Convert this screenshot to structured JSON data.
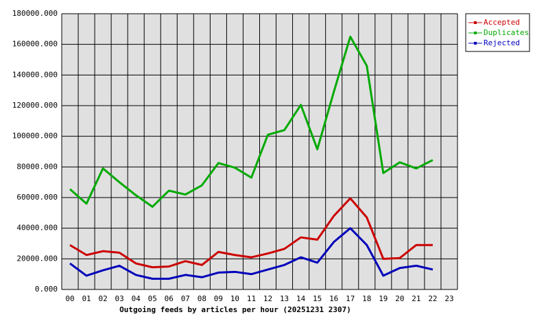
{
  "chart_data": {
    "type": "line",
    "title": "Outgoing feeds by articles per hour (20251231 2307)",
    "categories": [
      "00",
      "01",
      "02",
      "03",
      "04",
      "05",
      "06",
      "07",
      "08",
      "09",
      "10",
      "11",
      "12",
      "13",
      "14",
      "15",
      "16",
      "17",
      "18",
      "19",
      "20",
      "21",
      "22",
      "23"
    ],
    "series": [
      {
        "name": "Accepted",
        "color": "#cc0000",
        "values": [
          29000,
          22500,
          25000,
          24000,
          17000,
          14500,
          15000,
          18500,
          16000,
          24500,
          22500,
          21000,
          23500,
          26500,
          34000,
          32500,
          48000,
          59500,
          47000,
          20000,
          20500,
          29000,
          29000,
          null
        ]
      },
      {
        "name": "Duplicates",
        "color": "#00aa00",
        "values": [
          65500,
          56000,
          79000,
          70000,
          61500,
          54000,
          64500,
          62000,
          68000,
          82500,
          79500,
          73000,
          101000,
          104000,
          120500,
          91500,
          129000,
          165000,
          146000,
          76000,
          83000,
          79000,
          84500,
          null
        ]
      },
      {
        "name": "Rejected",
        "color": "#0000bb",
        "values": [
          17000,
          9000,
          12500,
          15500,
          9500,
          7000,
          7000,
          9500,
          8000,
          11000,
          11500,
          10000,
          13000,
          16000,
          21000,
          17500,
          31000,
          40000,
          29000,
          9000,
          14000,
          15500,
          13000,
          null
        ]
      }
    ],
    "ylim": [
      0,
      180000
    ],
    "yticks": [
      {
        "value": 0,
        "label": "0.000"
      },
      {
        "value": 20000,
        "label": "20000.000"
      },
      {
        "value": 40000,
        "label": "40000.000"
      },
      {
        "value": 60000,
        "label": "60000.000"
      },
      {
        "value": 80000,
        "label": "80000.000"
      },
      {
        "value": 100000,
        "label": "100000.000"
      },
      {
        "value": 120000,
        "label": "120000.000"
      },
      {
        "value": 140000,
        "label": "140000.000"
      },
      {
        "value": 160000,
        "label": "160000.000"
      },
      {
        "value": 180000,
        "label": "180000.000"
      }
    ],
    "grid": true,
    "legend": "top-right"
  }
}
